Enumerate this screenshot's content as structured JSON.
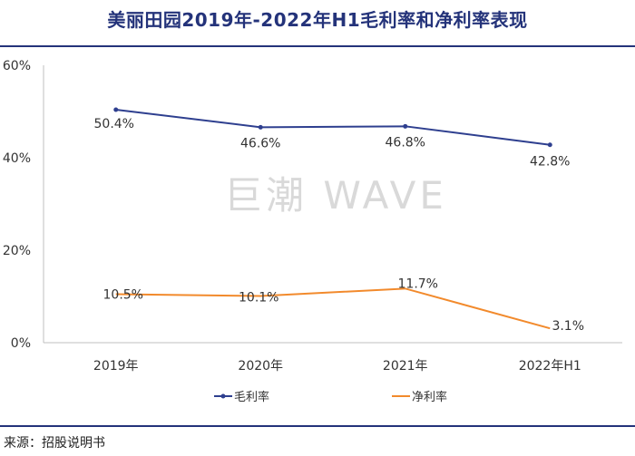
{
  "header": {
    "title": "美丽田园2019年-2022年H1毛利率和净利率表现"
  },
  "watermark": "巨潮 WAVE",
  "footer": {
    "source": "来源：招股说明书"
  },
  "chart_data": {
    "type": "line",
    "title": "美丽田园2019年-2022年H1毛利率和净利率表现",
    "categories": [
      "2019年",
      "2020年",
      "2021年",
      "2022年H1"
    ],
    "yticks": [
      "0%",
      "20%",
      "40%",
      "60%"
    ],
    "ylim": [
      0,
      60
    ],
    "series": [
      {
        "name": "毛利率",
        "color": "#2e3f8f",
        "values": [
          50.4,
          46.6,
          46.8,
          42.8
        ],
        "labels": [
          "50.4%",
          "46.6%",
          "46.8%",
          "42.8%"
        ]
      },
      {
        "name": "净利率",
        "color": "#f28a2c",
        "values": [
          10.5,
          10.1,
          11.7,
          3.1
        ],
        "labels": [
          "10.5%",
          "10.1%",
          "11.7%",
          "3.1%"
        ]
      }
    ],
    "legend_position": "bottom-center",
    "grid": false
  }
}
